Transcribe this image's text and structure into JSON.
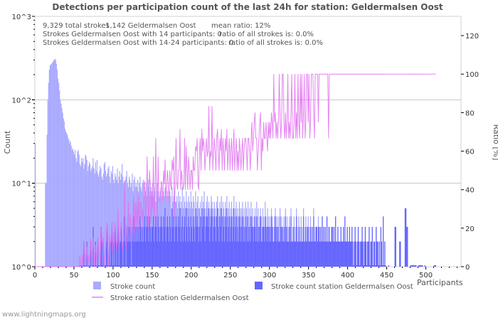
{
  "chart_data": {
    "type": "bar",
    "title": "Detections per participation count of the last 24h for station: Geldermalsen Oost",
    "xlabel": "Participants",
    "ylabel": "Count",
    "y2label": "Ratio [%]",
    "xlim": [
      0,
      545
    ],
    "ylim_log": [
      0,
      3
    ],
    "y2lim": [
      0,
      130
    ],
    "x_ticks": [
      "0",
      "50",
      "100",
      "150",
      "200",
      "250",
      "300",
      "350",
      "400",
      "450",
      "500"
    ],
    "y_ticks": [
      "10^0",
      "10^1",
      "10^2",
      "10^3"
    ],
    "y2_ticks": [
      "0",
      "20",
      "40",
      "60",
      "80",
      "100",
      "120"
    ],
    "grid": true,
    "info_lines": [
      [
        "9,329 total strokes",
        "1,142 Geldermalsen Oost",
        "mean ratio: 12%"
      ],
      [
        "Strokes Geldermalsen Oost with 14 participants: 0",
        "ratio of all strokes is: 0.0%"
      ],
      [
        "Strokes Geldermalsen Oost with 14-24 participants: 0",
        "ratio of all strokes is: 0.0%"
      ]
    ],
    "legend": {
      "total": "Stroke count",
      "station": "Stroke count station Geldermalsen Oost",
      "ratio": "Stroke ratio station Geldermalsen Oost",
      "placement": "bottom"
    },
    "colors": {
      "total": "#aaaaff",
      "station": "#6666ff",
      "ratio": "#e070f0",
      "grid": "#c8c8c8"
    },
    "series_x_start": 0,
    "series": [
      {
        "name": "Stroke count",
        "values": [
          30,
          0,
          0,
          0,
          0,
          0,
          0,
          0,
          0,
          0,
          0,
          0,
          0,
          10,
          10,
          38,
          100,
          160,
          230,
          260,
          265,
          270,
          280,
          290,
          300,
          310,
          300,
          270,
          230,
          180,
          160,
          130,
          100,
          90,
          80,
          70,
          60,
          55,
          45,
          42,
          40,
          38,
          35,
          33,
          30,
          32,
          28,
          25,
          26,
          24,
          22,
          25,
          20,
          18,
          24,
          25,
          22,
          17,
          16,
          20,
          18,
          20,
          15,
          17,
          22,
          21,
          19,
          14,
          16,
          18,
          17,
          14,
          15,
          16,
          20,
          15,
          13,
          18,
          14,
          19,
          13,
          12,
          14,
          16,
          15,
          12,
          11,
          13,
          17,
          18,
          14,
          12,
          13,
          15,
          16,
          12,
          10,
          14,
          13,
          16,
          11,
          10,
          13,
          12,
          11,
          15,
          10,
          12,
          14,
          11,
          13,
          17,
          12,
          10,
          9,
          11,
          12,
          14,
          10,
          9,
          12,
          11,
          9,
          10,
          13,
          8,
          11,
          12,
          9,
          10,
          9,
          11,
          8,
          10,
          12,
          9,
          8,
          10,
          11,
          7,
          9,
          8,
          10,
          7,
          9,
          11,
          8,
          7,
          9,
          8,
          10,
          7,
          8,
          9,
          6,
          8,
          10,
          7,
          8,
          6,
          8,
          9,
          7,
          6,
          8,
          7,
          9,
          6,
          7,
          8,
          7,
          6,
          8,
          7,
          5,
          9,
          6,
          7,
          8,
          6,
          6,
          7,
          5,
          8,
          6,
          7,
          5,
          6,
          9,
          5,
          7,
          6,
          5,
          8,
          6,
          5,
          7,
          6,
          5,
          8,
          6,
          5,
          7,
          6,
          4,
          8,
          5,
          6,
          7,
          5,
          5,
          6,
          4,
          7,
          5,
          6,
          8,
          4,
          5,
          6,
          7,
          5,
          6,
          4,
          5,
          7,
          6,
          4,
          5,
          6,
          5,
          4,
          6,
          7,
          5,
          4,
          6,
          5,
          7,
          4,
          6,
          5,
          4,
          6,
          5,
          7,
          4,
          5,
          6,
          4,
          5,
          6,
          4,
          5,
          7,
          4,
          5,
          6,
          4,
          5,
          4,
          6,
          5,
          4,
          5,
          6,
          4,
          5,
          3,
          6,
          5,
          4,
          6,
          3,
          5,
          4,
          6,
          4,
          5,
          3,
          4,
          5,
          3,
          6,
          4,
          5,
          3,
          4,
          5,
          4,
          3,
          5,
          4,
          3,
          6,
          4,
          3,
          5,
          4,
          3,
          4,
          3,
          5,
          4,
          3,
          2,
          4,
          5,
          3,
          4,
          3,
          4,
          2,
          5,
          3,
          4,
          3,
          2,
          4,
          3,
          5,
          3,
          4,
          2,
          3,
          4,
          3,
          5,
          2,
          3,
          3,
          4,
          2,
          3,
          5,
          3,
          2,
          4,
          3,
          2,
          4,
          2,
          3,
          5,
          2,
          3,
          4,
          2,
          3,
          4,
          2,
          3,
          4,
          2,
          3,
          2,
          5,
          3,
          2,
          3,
          3,
          2,
          4,
          3,
          2,
          3,
          2,
          4,
          2,
          3,
          2,
          3,
          2,
          4,
          2,
          3,
          3,
          2,
          2,
          3,
          3,
          2,
          3,
          2,
          4,
          2,
          2,
          3,
          2,
          2,
          2,
          3,
          2,
          2,
          3,
          2,
          4,
          2,
          2,
          3,
          2,
          2,
          3,
          2,
          2,
          3,
          2,
          1,
          2,
          3,
          2,
          1,
          2,
          3,
          2,
          1,
          2,
          2,
          3,
          2,
          1,
          2,
          3,
          2,
          1,
          2,
          2,
          3,
          1,
          2,
          2,
          3,
          1,
          2,
          2,
          1,
          3,
          2,
          2,
          1,
          2,
          1,
          3,
          2,
          1,
          4,
          1,
          2,
          1,
          0,
          0,
          0,
          1,
          0,
          0,
          0,
          0,
          0,
          0,
          0,
          3,
          3,
          0,
          0,
          0,
          0,
          2,
          2,
          0,
          0,
          0,
          0,
          0,
          5,
          5,
          3,
          3,
          0,
          0,
          0,
          1,
          1,
          1,
          1,
          1,
          1,
          1,
          1,
          0,
          0,
          1,
          1,
          1,
          1,
          1,
          1,
          0,
          0,
          1,
          0,
          0,
          0,
          0,
          0,
          0,
          0,
          0,
          0,
          0,
          0,
          1,
          1,
          1,
          0,
          0,
          0
        ]
      },
      {
        "name": "Stroke count station Geldermalsen Oost",
        "values": [
          0,
          0,
          0,
          0,
          0,
          0,
          0,
          0,
          0,
          0,
          0,
          0,
          0,
          0,
          0,
          0,
          0,
          0,
          0,
          0,
          0,
          0,
          0,
          0,
          0,
          0,
          0,
          0,
          0,
          0,
          0,
          0,
          0,
          0,
          0,
          0,
          0,
          0,
          0,
          0,
          0,
          0,
          0,
          0,
          0,
          0,
          0,
          0,
          0,
          0,
          0,
          0,
          0,
          0,
          0,
          0,
          0,
          1,
          0,
          0,
          1,
          0,
          2,
          1,
          0,
          1,
          2,
          0,
          1,
          0,
          1,
          2,
          0,
          1,
          3,
          1,
          0,
          2,
          1,
          0,
          2,
          1,
          1,
          0,
          3,
          2,
          1,
          2,
          0,
          1,
          1,
          2,
          3,
          1,
          0,
          2,
          1,
          2,
          3,
          1,
          2,
          1,
          3,
          2,
          1,
          2,
          3,
          1,
          2,
          2,
          3,
          2,
          1,
          2,
          4,
          2,
          1,
          3,
          2,
          3,
          2,
          3,
          2,
          1,
          3,
          2,
          4,
          2,
          3,
          2,
          3,
          2,
          3,
          2,
          4,
          3,
          2,
          3,
          2,
          3,
          4,
          2,
          3,
          4,
          3,
          2,
          4,
          3,
          2,
          3,
          3,
          4,
          2,
          3,
          4,
          3,
          2,
          4,
          3,
          2,
          3,
          4,
          3,
          2,
          4,
          3,
          5,
          2,
          3,
          4,
          3,
          2,
          4,
          3,
          2,
          5,
          3,
          4,
          2,
          3,
          4,
          3,
          2,
          4,
          3,
          5,
          2,
          3,
          4,
          2,
          3,
          4,
          2,
          5,
          3,
          2,
          4,
          3,
          2,
          4,
          3,
          2,
          4,
          3,
          2,
          5,
          3,
          4,
          3,
          2,
          3,
          4,
          2,
          5,
          3,
          4,
          5,
          2,
          3,
          4,
          4,
          3,
          5,
          2,
          3,
          4,
          5,
          2,
          3,
          4,
          3,
          2,
          4,
          5,
          3,
          2,
          4,
          3,
          5,
          2,
          4,
          3,
          2,
          4,
          3,
          5,
          2,
          3,
          4,
          2,
          3,
          4,
          2,
          3,
          5,
          2,
          3,
          4,
          2,
          3,
          2,
          4,
          3,
          2,
          3,
          4,
          2,
          3,
          2,
          4,
          3,
          2,
          4,
          2,
          3,
          2,
          4,
          3,
          3,
          2,
          3,
          4,
          2,
          4,
          2,
          3,
          2,
          3,
          4,
          2,
          2,
          3,
          3,
          2,
          4,
          3,
          2,
          3,
          3,
          2,
          3,
          2,
          4,
          3,
          2,
          2,
          3,
          4,
          2,
          3,
          2,
          3,
          2,
          4,
          2,
          3,
          3,
          2,
          3,
          2,
          4,
          2,
          3,
          2,
          2,
          3,
          2,
          4,
          2,
          2,
          2,
          3,
          2,
          2,
          4,
          2,
          2,
          3,
          2,
          2,
          3,
          2,
          2,
          4,
          2,
          2,
          3,
          2,
          3,
          3,
          2,
          2,
          3,
          2,
          3,
          2,
          4,
          2,
          2,
          3,
          3,
          2,
          3,
          3,
          2,
          3,
          2,
          4,
          2,
          3,
          2,
          3,
          2,
          4,
          2,
          2,
          3,
          2,
          2,
          3,
          3,
          2,
          3,
          2,
          4,
          2,
          2,
          3,
          2,
          2,
          2,
          3,
          2,
          2,
          3,
          2,
          4,
          2,
          2,
          3,
          2,
          2,
          3,
          2,
          2,
          3,
          2,
          1,
          2,
          3,
          2,
          1,
          2,
          3,
          2,
          1,
          2,
          2,
          3,
          2,
          1,
          2,
          3,
          2,
          1,
          2,
          2,
          3,
          1,
          2,
          2,
          3,
          1,
          2,
          2,
          1,
          3,
          2,
          2,
          1,
          2,
          1,
          3,
          2,
          1,
          4,
          1,
          2,
          1,
          0,
          0,
          0,
          1,
          0,
          0,
          0,
          0,
          0,
          0,
          0,
          3,
          3,
          0,
          0,
          0,
          0,
          2,
          2,
          0,
          0,
          0,
          0,
          0,
          5,
          5,
          3,
          3,
          0,
          0,
          0,
          1,
          1,
          1,
          1,
          1,
          1,
          1,
          1,
          0,
          0,
          1,
          1,
          1,
          1,
          1,
          1,
          0,
          0,
          1,
          0,
          0,
          0,
          0,
          0,
          0,
          0,
          0,
          0,
          0,
          0,
          1,
          1,
          1,
          0,
          0,
          0
        ]
      },
      {
        "name": "Stroke ratio station Geldermalsen Oost",
        "derived": "station / total * 100 (%)"
      }
    ]
  },
  "footer": "www.lightningmaps.org"
}
